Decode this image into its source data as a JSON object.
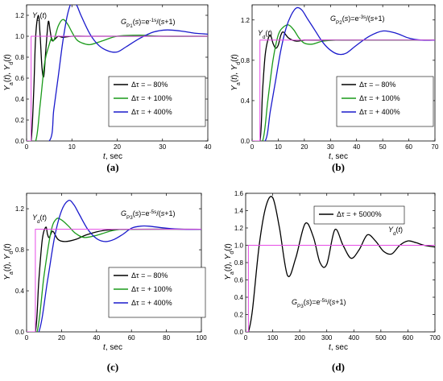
{
  "chart_data": [
    {
      "type": "line",
      "caption": "(a)",
      "title": "G_P1(s)=e^{-1s}/(s+1)",
      "xlabel": "t, sec",
      "ylabel": "Y_a(t), Y_d(t)",
      "xlim": [
        0,
        40
      ],
      "ylim": [
        0.0,
        1.3
      ],
      "xticks": [
        "0",
        "10",
        "20",
        "30",
        "40"
      ],
      "yticks": [
        "0.0",
        "0.2",
        "0.4",
        "0.6",
        "0.8",
        "1.0",
        "1.2"
      ],
      "reference_label": "Y_d(t)",
      "legend_position": "center-right",
      "grid": false,
      "series": [
        {
          "name": "Δτ = – 80%",
          "color": "#000000",
          "x": [
            0,
            1,
            1.6,
            2.0,
            2.6,
            3.0,
            3.4,
            3.8,
            4.3,
            4.8,
            5.2,
            5.6,
            6.2,
            7,
            8,
            10,
            13,
            20,
            40
          ],
          "y": [
            0,
            0,
            0.5,
            1.0,
            1.2,
            1.0,
            0.7,
            0.62,
            0.9,
            1.14,
            1.05,
            0.96,
            0.97,
            1.0,
            0.99,
            1.0,
            1.0,
            1.0,
            1.0
          ]
        },
        {
          "name": "Δτ = + 100%",
          "color": "#1a9a1a",
          "x": [
            0,
            2,
            3,
            4,
            5,
            5.5,
            6,
            7,
            8,
            9,
            10,
            11,
            12,
            14,
            17,
            20,
            25,
            30,
            40
          ],
          "y": [
            0,
            0,
            0.35,
            0.75,
            0.92,
            0.98,
            0.96,
            1.1,
            1.16,
            1.12,
            1.04,
            0.97,
            0.94,
            0.92,
            0.96,
            1.0,
            1.01,
            1.0,
            1.0
          ]
        },
        {
          "name": "Δτ = + 400%",
          "color": "#1a1acc",
          "x": [
            0,
            5,
            6,
            7,
            8,
            9,
            10,
            11,
            12,
            14,
            16,
            18,
            20,
            22,
            25,
            28,
            31,
            34,
            37,
            40
          ],
          "y": [
            0,
            0,
            0.3,
            0.62,
            0.95,
            1.2,
            1.33,
            1.3,
            1.2,
            1.02,
            0.91,
            0.86,
            0.85,
            0.9,
            0.98,
            1.04,
            1.06,
            1.05,
            1.03,
            1.02
          ]
        },
        {
          "name": "Y_d(t)",
          "color": "#e64ce6",
          "x": [
            0,
            1,
            1,
            40
          ],
          "y": [
            0,
            0,
            1,
            1
          ]
        }
      ]
    },
    {
      "type": "line",
      "caption": "(b)",
      "title": "G_P2(s)=e^{-3s}/(s+1)",
      "xlabel": "t, sec",
      "ylabel": "Y_a(t), Y_d(t)",
      "xlim": [
        0,
        70
      ],
      "ylim": [
        0.0,
        1.35
      ],
      "xticks": [
        "0",
        "10",
        "20",
        "30",
        "40",
        "50",
        "60",
        "70"
      ],
      "yticks": [
        "0.0",
        "0.4",
        "0.8",
        "1.2"
      ],
      "reference_label": "Y_d(t)",
      "legend_position": "center-right",
      "grid": false,
      "series": [
        {
          "name": "Δτ = – 80%",
          "color": "#000000",
          "x": [
            0,
            3,
            4,
            5,
            6,
            7,
            8,
            9,
            10,
            11,
            12,
            14,
            17,
            20,
            25,
            70
          ],
          "y": [
            0,
            0,
            0.5,
            0.85,
            1.0,
            1.05,
            0.97,
            0.92,
            0.95,
            1.05,
            1.08,
            1.02,
            0.99,
            1.0,
            1.0,
            1.0
          ]
        },
        {
          "name": "Δτ = + 100%",
          "color": "#1a9a1a",
          "x": [
            0,
            4,
            6,
            8,
            10,
            12,
            14,
            16,
            18,
            20,
            23,
            27,
            32,
            40,
            50,
            70
          ],
          "y": [
            0,
            0,
            0.4,
            0.8,
            1.05,
            1.13,
            1.15,
            1.1,
            1.02,
            0.97,
            0.96,
            0.99,
            1.0,
            1.0,
            1.0,
            1.0
          ]
        },
        {
          "name": "Δτ = + 400%",
          "color": "#1a1acc",
          "x": [
            0,
            5,
            7,
            9,
            11,
            13,
            15,
            17,
            19,
            21,
            24,
            27,
            30,
            33,
            36,
            40,
            45,
            50,
            55,
            60,
            65,
            70
          ],
          "y": [
            0,
            0,
            0.3,
            0.6,
            0.9,
            1.12,
            1.25,
            1.32,
            1.3,
            1.22,
            1.1,
            0.98,
            0.9,
            0.86,
            0.87,
            0.95,
            1.04,
            1.09,
            1.07,
            1.02,
            1.0,
            1.0
          ]
        },
        {
          "name": "Y_d(t)",
          "color": "#e64ce6",
          "x": [
            0,
            3,
            3,
            70
          ],
          "y": [
            0,
            0,
            1,
            1
          ]
        }
      ]
    },
    {
      "type": "line",
      "caption": "(c)",
      "title": "G_P3(s)=e^{-5s}/(s+1)",
      "xlabel": "t, sec",
      "ylabel": "Y_a(t), Y_d(t)",
      "xlim": [
        0,
        100
      ],
      "ylim": [
        0.0,
        1.35
      ],
      "xticks": [
        "0",
        "20",
        "40",
        "60",
        "80",
        "100"
      ],
      "yticks": [
        "0.0",
        "0.4",
        "0.8",
        "1.2"
      ],
      "reference_label": "Y_d(t)",
      "legend_position": "center-right",
      "grid": false,
      "series": [
        {
          "name": "Δτ = – 80%",
          "color": "#000000",
          "x": [
            0,
            5,
            7,
            9,
            11,
            12,
            13,
            15,
            18,
            22,
            28,
            35,
            45,
            60,
            100
          ],
          "y": [
            0,
            0,
            0.5,
            0.9,
            1.02,
            0.95,
            0.92,
            0.98,
            0.9,
            0.88,
            0.9,
            0.95,
            0.99,
            1.0,
            1.0
          ]
        },
        {
          "name": "Δτ = + 100%",
          "color": "#1a9a1a",
          "x": [
            0,
            6,
            10,
            14,
            17,
            20,
            24,
            28,
            33,
            40,
            50,
            60,
            100
          ],
          "y": [
            0,
            0,
            0.55,
            0.98,
            1.1,
            1.09,
            1.03,
            0.96,
            0.92,
            0.94,
            0.99,
            1.0,
            1.0
          ]
        },
        {
          "name": "Δτ = + 400%",
          "color": "#1a1acc",
          "x": [
            0,
            7,
            12,
            16,
            20,
            24,
            27,
            30,
            35,
            40,
            45,
            50,
            55,
            60,
            65,
            70,
            80,
            90,
            100
          ],
          "y": [
            0,
            0,
            0.5,
            0.92,
            1.18,
            1.28,
            1.24,
            1.15,
            1.0,
            0.91,
            0.88,
            0.9,
            0.95,
            1.01,
            1.03,
            1.03,
            1.01,
            1.0,
            1.0
          ]
        },
        {
          "name": "Y_d(t)",
          "color": "#e64ce6",
          "x": [
            0,
            5,
            5,
            100
          ],
          "y": [
            0,
            0,
            1,
            1
          ]
        }
      ]
    },
    {
      "type": "line",
      "caption": "(d)",
      "title": "G_P3(s)=e^{-5s}/(s+1)",
      "xlabel": "t, sec",
      "ylabel": "Y_a(t), Y_d(t)",
      "xlim": [
        0,
        700
      ],
      "ylim": [
        0.0,
        1.6
      ],
      "xticks": [
        "0",
        "100",
        "200",
        "300",
        "400",
        "500",
        "600",
        "700"
      ],
      "yticks": [
        "0.0",
        "0.2",
        "0.4",
        "0.6",
        "0.8",
        "1.0",
        "1.2",
        "1.4",
        "1.6"
      ],
      "reference_label": "Y_d(t)",
      "legend_position": "top-left",
      "grid": false,
      "series": [
        {
          "name": "Δτ = + 5000%",
          "color": "#000000",
          "x": [
            0,
            10,
            25,
            50,
            75,
            100,
            125,
            155,
            185,
            220,
            250,
            275,
            300,
            330,
            360,
            390,
            420,
            450,
            480,
            510,
            540,
            570,
            600,
            630,
            660,
            700
          ],
          "y": [
            0,
            0,
            0.25,
            1.0,
            1.45,
            1.55,
            1.2,
            0.65,
            0.85,
            1.25,
            1.1,
            0.8,
            0.78,
            1.18,
            1.0,
            0.85,
            0.95,
            1.12,
            1.05,
            0.93,
            0.9,
            1.0,
            1.05,
            1.03,
            1.0,
            0.98
          ]
        },
        {
          "name": "Y_d(t)",
          "color": "#e64ce6",
          "x": [
            0,
            10,
            10,
            700
          ],
          "y": [
            0,
            0,
            1,
            1
          ]
        }
      ]
    }
  ]
}
